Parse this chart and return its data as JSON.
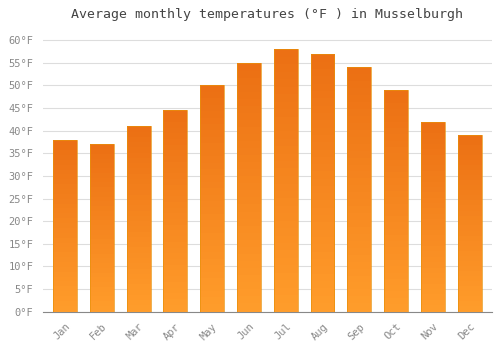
{
  "title": "Average monthly temperatures (°F ) in Musselburgh",
  "months": [
    "Jan",
    "Feb",
    "Mar",
    "Apr",
    "May",
    "Jun",
    "Jul",
    "Aug",
    "Sep",
    "Oct",
    "Nov",
    "Dec"
  ],
  "values": [
    38,
    37,
    41,
    44.5,
    50,
    55,
    58,
    57,
    54,
    49,
    42,
    39
  ],
  "bar_color_top": "#FFC933",
  "bar_color_bottom": "#FFA020",
  "background_color": "#FFFFFF",
  "plot_bg_color": "#FFFFFF",
  "grid_color": "#DDDDDD",
  "text_color": "#888888",
  "title_color": "#444444",
  "ylim": [
    0,
    63
  ],
  "title_fontsize": 9.5,
  "tick_fontsize": 7.5,
  "font_family": "monospace"
}
